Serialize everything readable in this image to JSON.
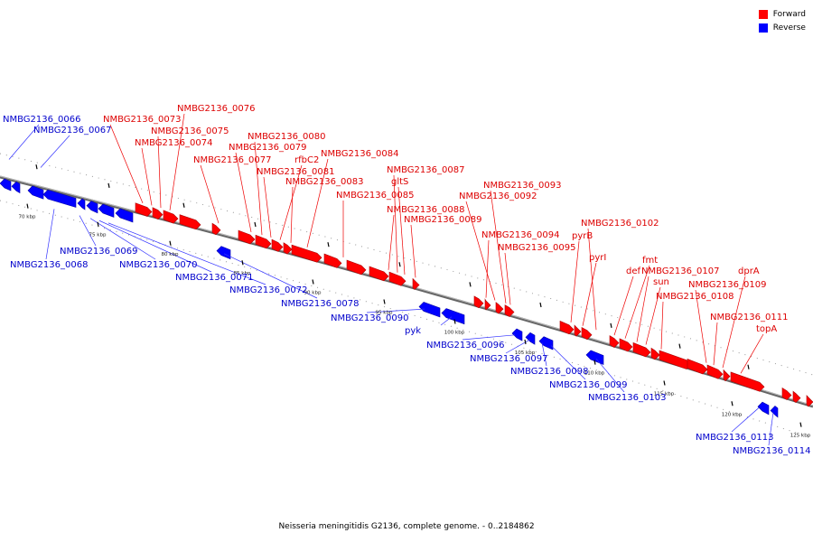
{
  "legend": [
    {
      "label": "Forward",
      "color": "#ff0000"
    },
    {
      "label": "Reverse",
      "color": "#0000ff"
    }
  ],
  "caption": "Neisseria meningitidis G2136, complete genome. - 0..2184862",
  "ticks": [
    "70 kbp",
    "75 kbp",
    "80 kbp",
    "85 kbp",
    "90 kbp",
    "95 kbp",
    "100 kbp",
    "105 kbp",
    "110 kbp",
    "115 kbp",
    "120 kbp",
    "125 kbp"
  ],
  "forward_labels": [
    "NMBG2136_0073",
    "NMBG2136_0076",
    "NMBG2136_0075",
    "NMBG2136_0074",
    "NMBG2136_0080",
    "NMBG2136_0079",
    "NMBG2136_0077",
    "rfbC2",
    "NMBG2136_0084",
    "NMBG2136_0081",
    "NMBG2136_0083",
    "NMBG2136_0087",
    "gltS",
    "NMBG2136_0085",
    "NMBG2136_0093",
    "NMBG2136_0092",
    "NMBG2136_0088",
    "NMBG2136_0089",
    "NMBG2136_0102",
    "NMBG2136_0094",
    "pyrB",
    "NMBG2136_0095",
    "pyrI",
    "fmt",
    "def",
    "NMBG2136_0107",
    "dprA",
    "sun",
    "NMBG2136_0109",
    "NMBG2136_0108",
    "NMBG2136_0111",
    "topA"
  ],
  "reverse_labels": [
    "NMBG2136_0066",
    "NMBG2136_0067",
    "NMBG2136_0069",
    "NMBG2136_0068",
    "NMBG2136_0070",
    "NMBG2136_0071",
    "NMBG2136_0072",
    "NMBG2136_0078",
    "NMBG2136_0090",
    "pyk",
    "NMBG2136_0096",
    "NMBG2136_0097",
    "NMBG2136_0098",
    "NMBG2136_0099",
    "NMBG2136_0103",
    "NMBG2136_0113",
    "NMBG2136_0114"
  ]
}
